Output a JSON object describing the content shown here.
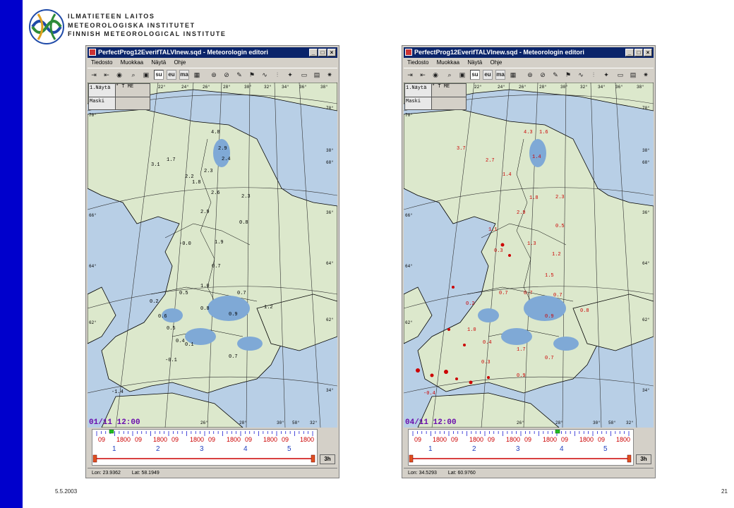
{
  "slide": {
    "logo_lines": [
      "ILMATIETEEN LAITOS",
      "METEOROLOGISKA INSTITUTET",
      "FINNISH METEOROLOGICAL INSTITUTE"
    ],
    "date": "5.5.2003",
    "page_number": "21",
    "colors": {
      "left_bar": "#0000cc",
      "land": "#dce8cc",
      "water": "#b8cfe6",
      "window_title": "#0a246a",
      "observation_black": "#000000",
      "observation_red": "#cc0000"
    }
  },
  "windows": [
    {
      "title": "PerfectProg12EverifTALVInew.sqd - Meteorologin editori",
      "menus": [
        "Tiedosto",
        "Muokkaa",
        "Näytä",
        "Ohje"
      ],
      "toolbar_buttons": [
        "su",
        "eu",
        "ma"
      ],
      "info_rows": [
        {
          "label": "1.Näytä",
          "value": "* T ME"
        },
        {
          "label": "Maski",
          "value": ""
        }
      ],
      "timestamp": "01/11 12:00",
      "timeline_hours": [
        "09",
        "1800",
        "09",
        "1800",
        "09",
        "1800",
        "09",
        "1800",
        "09",
        "1800",
        "09",
        "1800"
      ],
      "timeline_days": [
        "1",
        "2",
        "3",
        "4",
        "5"
      ],
      "step_button": "3h",
      "lon": "Lon: 23.9362",
      "lat": "Lat: 58.1949",
      "marker_color": "black"
    },
    {
      "title": "PerfectProg12EverifTALVInew.sqd - Meteorologin editori",
      "menus": [
        "Tiedosto",
        "Muokkaa",
        "Näytä",
        "Ohje"
      ],
      "toolbar_buttons": [
        "su",
        "eu",
        "ma"
      ],
      "info_rows": [
        {
          "label": "1.Näytä",
          "value": "* T ME"
        },
        {
          "label": "Maski",
          "value": ""
        }
      ],
      "timestamp": "04/11 12:00",
      "timeline_hours": [
        "09",
        "1800",
        "09",
        "1800",
        "09",
        "1800",
        "09",
        "1800",
        "09",
        "1800",
        "09",
        "1800"
      ],
      "timeline_days": [
        "1",
        "2",
        "3",
        "4",
        "5"
      ],
      "step_button": "3h",
      "lon": "Lon: 34.5293",
      "lat": "Lat: 60.9760",
      "marker_color": "red"
    }
  ],
  "map_grid_labels": {
    "top": [
      "22°",
      "24°",
      "26°",
      "28°",
      "30°",
      "32°",
      "34°",
      "36°",
      "38°"
    ],
    "right": [
      "70°",
      "38°",
      "68°",
      "36°",
      "66°",
      "64°",
      "62°",
      "34°"
    ],
    "left": [
      "70°",
      "68°",
      "66°",
      "64°",
      "62°"
    ],
    "bottom": [
      "26°",
      "28°",
      "30°",
      "58°",
      "32°"
    ]
  },
  "map_values": [
    "4.8",
    "2.9",
    "3.1",
    "1.7",
    "2.4",
    "2.3",
    "2.2",
    "1.8",
    "2.6",
    "2.3",
    "2.9",
    "0.8",
    "1.9",
    "0.7",
    "1.0",
    "0.7",
    "0.5",
    "0.2",
    "0.9",
    "0.6",
    "0.8",
    "0.5",
    "0.4",
    "0.1",
    "0.7",
    "-0.1",
    "1.2",
    "-1.4",
    "-0.0",
    "4.3",
    "1.6"
  ]
}
